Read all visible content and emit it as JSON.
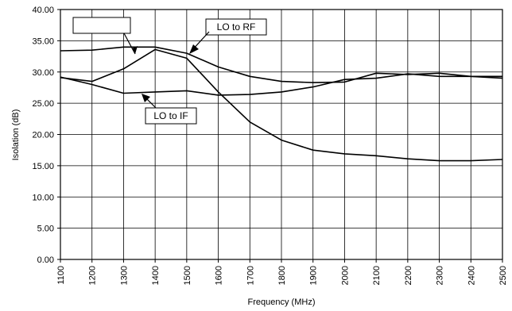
{
  "chart_data": {
    "type": "line",
    "title": "",
    "xlabel": "Frequency (MHz)",
    "ylabel": "Isolation (dB)",
    "x": [
      1100,
      1200,
      1300,
      1400,
      1500,
      1600,
      1700,
      1800,
      1900,
      2000,
      2100,
      2200,
      2300,
      2400,
      2500
    ],
    "x_tick_labels": [
      "1100",
      "1200",
      "1300",
      "1400",
      "1500",
      "1600",
      "1700",
      "1800",
      "1900",
      "2000",
      "2100",
      "2200",
      "2300",
      "2400",
      "2500"
    ],
    "y_ticks": [
      0,
      5,
      10,
      15,
      20,
      25,
      30,
      35,
      40
    ],
    "y_tick_labels": [
      "0.00",
      "5.00",
      "10.00",
      "15.00",
      "20.00",
      "25.00",
      "30.00",
      "35.00",
      "40.00"
    ],
    "ylim": [
      0,
      40
    ],
    "xlim": [
      1100,
      2500
    ],
    "grid": true,
    "series": [
      {
        "name": "LO to RF",
        "values": [
          33.4,
          33.5,
          34.0,
          34.0,
          33.0,
          30.8,
          29.3,
          28.5,
          28.3,
          28.4,
          29.8,
          29.6,
          29.8,
          29.3,
          29.0
        ]
      },
      {
        "name": "LO to IF",
        "values": [
          29.2,
          28.0,
          26.6,
          26.8,
          27.0,
          26.3,
          26.4,
          26.8,
          27.6,
          28.8,
          29.0,
          29.7,
          29.3,
          29.3,
          29.3
        ]
      },
      {
        "name": "",
        "values": [
          29.1,
          28.5,
          30.5,
          33.6,
          32.2,
          26.8,
          22.0,
          19.1,
          17.5,
          16.9,
          16.6,
          16.1,
          15.8,
          15.8,
          16.0
        ]
      }
    ],
    "annotations": [
      {
        "text": "LO to RF"
      },
      {
        "text": "LO to IF"
      },
      {
        "text": ""
      }
    ]
  }
}
